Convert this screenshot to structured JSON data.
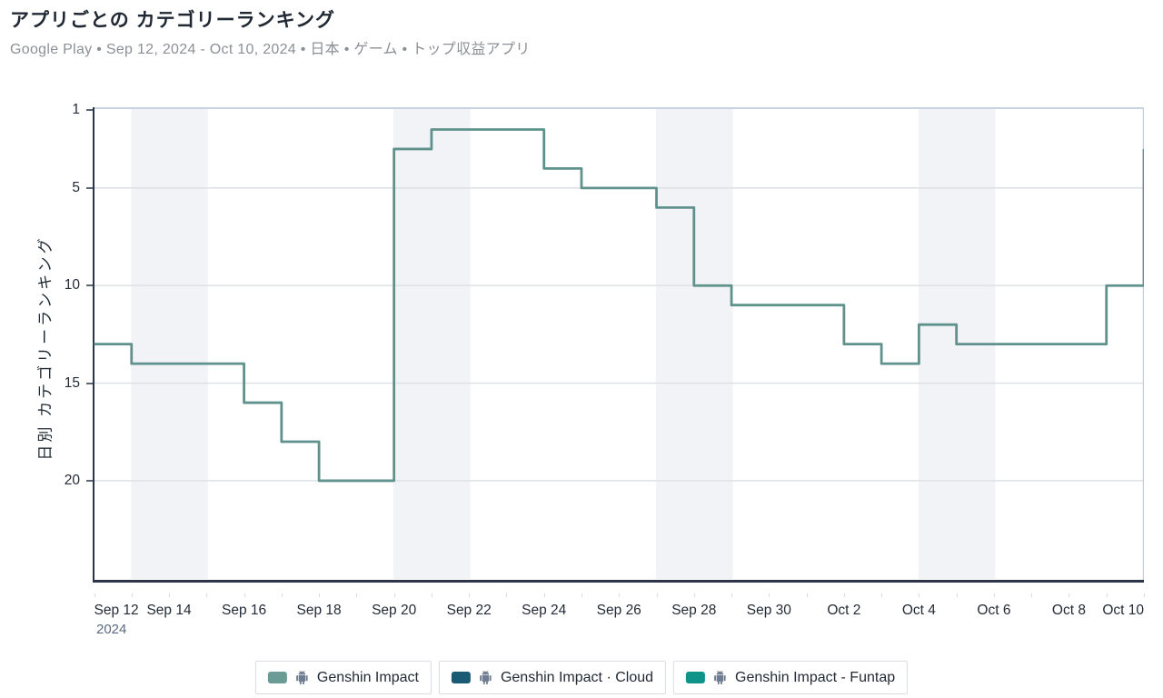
{
  "header": {
    "title": "アプリごとの カテゴリーランキング",
    "subtitle": "Google Play • Sep 12, 2024 - Oct 10, 2024 • 日本 • ゲーム • トップ収益アプリ"
  },
  "chart_data": {
    "type": "line",
    "line_style": "step-after",
    "title": "アプリごとの カテゴリーランキング",
    "store": "Google Play",
    "date_range": "Sep 12, 2024 - Oct 10, 2024",
    "country": "日本",
    "category": "ゲーム",
    "chart_kind": "トップ収益アプリ",
    "ylabel": "日別 カテゴリーランキング",
    "xlabel": "",
    "y_axis": {
      "inverted": true,
      "ticks": [
        1,
        5,
        10,
        15,
        20
      ],
      "top_rank": 1,
      "bottom_rank": 25
    },
    "x": [
      "Sep 12",
      "Sep 13",
      "Sep 14",
      "Sep 15",
      "Sep 16",
      "Sep 17",
      "Sep 18",
      "Sep 19",
      "Sep 20",
      "Sep 21",
      "Sep 22",
      "Sep 23",
      "Sep 24",
      "Sep 25",
      "Sep 26",
      "Sep 27",
      "Sep 28",
      "Sep 29",
      "Sep 30",
      "Oct 1",
      "Oct 2",
      "Oct 3",
      "Oct 4",
      "Oct 5",
      "Oct 6",
      "Oct 7",
      "Oct 8",
      "Oct 9",
      "Oct 10"
    ],
    "x_tick_labels": [
      "Sep 12",
      "Sep 14",
      "Sep 16",
      "Sep 18",
      "Sep 20",
      "Sep 22",
      "Sep 24",
      "Sep 26",
      "Sep 28",
      "Sep 30",
      "Oct 2",
      "Oct 4",
      "Oct 6",
      "Oct 8",
      "Oct 10"
    ],
    "x_year_label": "2024",
    "series": [
      {
        "name": "Genshin Impact",
        "color": "#5f928c",
        "values": [
          13,
          14,
          14,
          14,
          16,
          18,
          20,
          20,
          3,
          2,
          2,
          2,
          4,
          5,
          5,
          6,
          10,
          11,
          11,
          11,
          13,
          14,
          12,
          13,
          13,
          13,
          13,
          10,
          3
        ]
      },
      {
        "name": "Genshin Impact · Cloud",
        "color": "#1b5a75",
        "values": []
      },
      {
        "name": "Genshin Impact - Funtap",
        "color": "#109489",
        "values": []
      }
    ],
    "weekend_band_day_spans": [
      [
        1,
        3
      ],
      [
        8,
        10
      ],
      [
        15,
        17
      ],
      [
        22,
        24
      ]
    ],
    "grid": "horizontal",
    "legend_position": "bottom"
  },
  "legend": {
    "items": [
      {
        "label": "Genshin Impact",
        "swatch_color": "#6a9c95",
        "platform_icon": "android"
      },
      {
        "label": "Genshin Impact · Cloud",
        "swatch_color": "#1b5a75",
        "platform_icon": "android"
      },
      {
        "label": "Genshin Impact - Funtap",
        "swatch_color": "#109489",
        "platform_icon": "android"
      }
    ]
  },
  "colors": {
    "line": "#5f928c",
    "weekend_band": "#f1f3f6",
    "gridline": "#dcdfe3",
    "axis_dark": "#2b3547",
    "axis_top": "#c7d2e0",
    "axis_right": "#c6ccd4",
    "tick_label": "#232b36",
    "year_label": "#5a6a80",
    "android_icon": "#6e7b90"
  }
}
